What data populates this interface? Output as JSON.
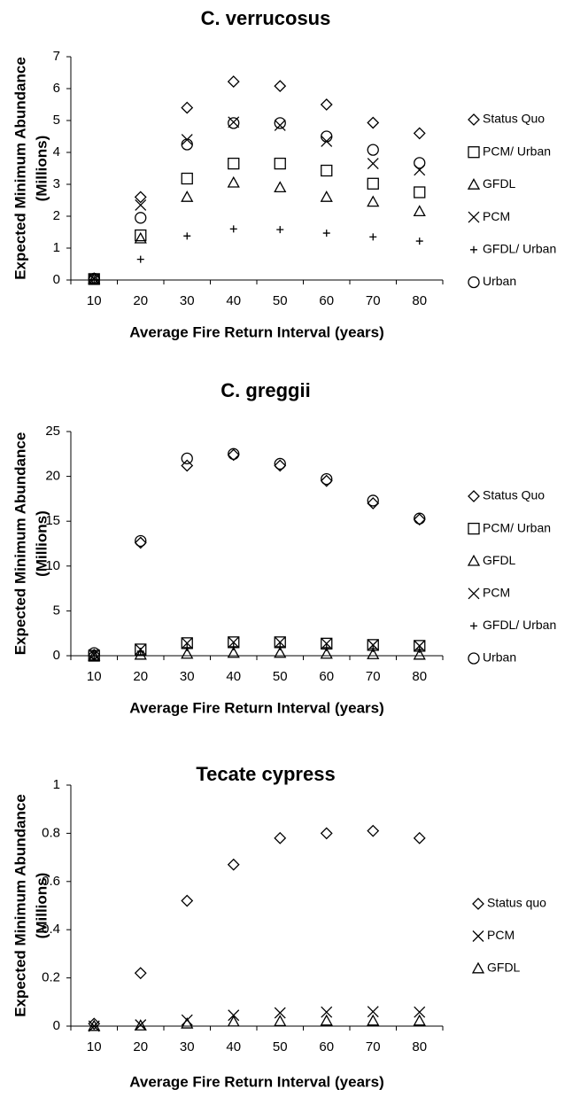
{
  "chart_data": [
    {
      "type": "scatter",
      "title": "C. verrucosus",
      "xlabel": "Average Fire Return Interval (years)",
      "ylabel": [
        "Expected Minimum Abundance",
        "(Millions)"
      ],
      "categories": [
        10,
        20,
        30,
        40,
        50,
        60,
        70,
        80
      ],
      "ylim": [
        0,
        7
      ],
      "yticks": [
        0,
        1,
        2,
        3,
        4,
        5,
        6,
        7
      ],
      "grid": false,
      "legend": "right",
      "series": [
        {
          "name": "Status Quo",
          "marker": "diamond",
          "color": "#000000",
          "values": [
            0.05,
            2.6,
            5.4,
            6.22,
            6.08,
            5.5,
            4.93,
            4.6
          ]
        },
        {
          "name": "PCM/ Urban",
          "marker": "square",
          "color": "#000000",
          "values": [
            0.03,
            1.4,
            3.18,
            3.65,
            3.65,
            3.43,
            3.02,
            2.75
          ]
        },
        {
          "name": "GFDL",
          "marker": "triangle",
          "color": "#000000",
          "values": [
            0.03,
            1.3,
            2.6,
            3.05,
            2.9,
            2.6,
            2.45,
            2.15
          ]
        },
        {
          "name": "PCM",
          "marker": "x",
          "color": "#000000",
          "values": [
            0.03,
            2.35,
            4.4,
            4.95,
            4.85,
            4.35,
            3.65,
            3.45
          ]
        },
        {
          "name": "GFDL/ Urban",
          "marker": "plus",
          "color": "#000000",
          "values": [
            0.02,
            0.65,
            1.38,
            1.6,
            1.58,
            1.47,
            1.35,
            1.22
          ]
        },
        {
          "name": "Urban",
          "marker": "circle",
          "color": "#000000",
          "values": [
            0.04,
            1.95,
            4.25,
            4.92,
            4.92,
            4.5,
            4.08,
            3.67
          ]
        }
      ]
    },
    {
      "type": "scatter",
      "title": "C. greggii",
      "xlabel": "Average Fire Return Interval (years)",
      "ylabel": [
        "Expected Minimum Abundance",
        "(Millions)"
      ],
      "categories": [
        10,
        20,
        30,
        40,
        50,
        60,
        70,
        80
      ],
      "ylim": [
        0,
        25
      ],
      "yticks": [
        0,
        5,
        10,
        15,
        20,
        25
      ],
      "grid": false,
      "legend": "right",
      "series": [
        {
          "name": "Status Quo",
          "marker": "diamond",
          "color": "#000000",
          "values": [
            0.1,
            12.6,
            21.2,
            22.4,
            21.2,
            19.5,
            17,
            15.2
          ]
        },
        {
          "name": "PCM/ Urban",
          "marker": "square",
          "color": "#000000",
          "values": [
            0,
            0.7,
            1.4,
            1.5,
            1.5,
            1.35,
            1.2,
            1.1
          ]
        },
        {
          "name": "GFDL",
          "marker": "triangle",
          "color": "#000000",
          "values": [
            0,
            0.1,
            0.2,
            0.3,
            0.3,
            0.2,
            0.15,
            0.1
          ]
        },
        {
          "name": "PCM",
          "marker": "x",
          "color": "#000000",
          "values": [
            0.1,
            0.7,
            1.4,
            1.5,
            1.5,
            1.35,
            1.2,
            1.1
          ]
        },
        {
          "name": "GFDL/ Urban",
          "marker": "plus",
          "color": "#000000",
          "values": [
            0,
            0.5,
            0.9,
            1.0,
            1.0,
            0.9,
            0.8,
            0.7
          ]
        },
        {
          "name": "Urban",
          "marker": "circle",
          "color": "#000000",
          "values": [
            0.3,
            12.8,
            22,
            22.5,
            21.4,
            19.7,
            17.3,
            15.3
          ]
        }
      ]
    },
    {
      "type": "scatter",
      "title": "Tecate cypress",
      "xlabel": "Average Fire Return Interval (years)",
      "ylabel": [
        "Expected Minimum Abundance",
        "(Millions)"
      ],
      "categories": [
        10,
        20,
        30,
        40,
        50,
        60,
        70,
        80
      ],
      "ylim": [
        0,
        1
      ],
      "yticks": [
        0,
        0.2,
        0.4,
        0.6,
        0.8,
        1
      ],
      "grid": false,
      "legend": "right",
      "series": [
        {
          "name": "Status quo",
          "marker": "diamond",
          "color": "#000000",
          "values": [
            0.01,
            0.22,
            0.52,
            0.67,
            0.78,
            0.8,
            0.81,
            0.78
          ]
        },
        {
          "name": "PCM",
          "marker": "x",
          "color": "#000000",
          "values": [
            0,
            0.005,
            0.025,
            0.045,
            0.055,
            0.058,
            0.06,
            0.058
          ]
        },
        {
          "name": "GFDL",
          "marker": "triangle",
          "color": "#000000",
          "values": [
            0,
            0.002,
            0.01,
            0.018,
            0.02,
            0.022,
            0.022,
            0.022
          ]
        }
      ]
    }
  ]
}
